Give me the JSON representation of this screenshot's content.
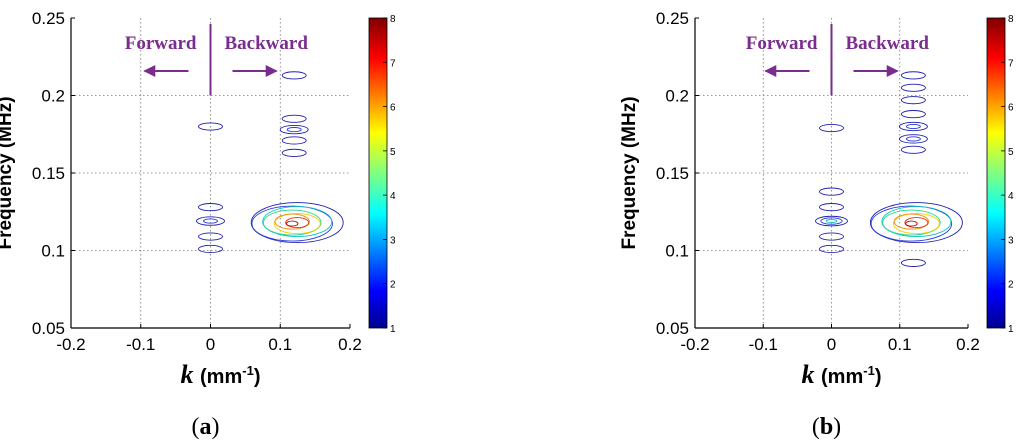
{
  "colors": {
    "annotation": "#7B2D8E",
    "contour_low": "#1f1fb0",
    "contour_mid": "#11c4c4",
    "contour_high": "#f2d200",
    "contour_peak": "#e01010",
    "grid": "#777777"
  },
  "chart_data": [
    {
      "type": "contour",
      "panel_label": "(a)",
      "panel_letter": "a",
      "xlabel_var": "k",
      "xlabel_unit": "(mm",
      "xlabel_exp": "-1",
      "xlabel_close": ")",
      "ylabel": "Frequency (MHz)",
      "xlim": [
        -0.2,
        0.2
      ],
      "ylim": [
        0.05,
        0.25
      ],
      "xticks": [
        "-0.2",
        "-0.1",
        "0",
        "0.1",
        "0.2"
      ],
      "yticks": [
        "0.05",
        "0.1",
        "0.15",
        "0.2",
        "0.25"
      ],
      "grid": true,
      "colorbar": {
        "min": 1,
        "max": 8,
        "ticks": [
          "1",
          "2",
          "3",
          "4",
          "5",
          "6",
          "7",
          "8"
        ]
      },
      "annotations": {
        "forward": "Forward",
        "backward": "Backward"
      },
      "blobs": [
        {
          "k": 0.0,
          "f": 0.18,
          "level": 1
        },
        {
          "k": 0.0,
          "f": 0.128,
          "level": 1
        },
        {
          "k": 0.0,
          "f": 0.119,
          "level": 2
        },
        {
          "k": 0.0,
          "f": 0.109,
          "level": 1
        },
        {
          "k": 0.0,
          "f": 0.101,
          "level": 1
        },
        {
          "k": 0.12,
          "f": 0.185,
          "level": 1
        },
        {
          "k": 0.12,
          "f": 0.178,
          "level": 2
        },
        {
          "k": 0.12,
          "f": 0.171,
          "level": 1
        },
        {
          "k": 0.12,
          "f": 0.163,
          "level": 1
        },
        {
          "k": 0.12,
          "f": 0.213,
          "level": 1
        },
        {
          "k": 0.12,
          "f": 0.118,
          "level": 8
        }
      ]
    },
    {
      "type": "contour",
      "panel_label": "(b)",
      "panel_letter": "b",
      "xlabel_var": "k",
      "xlabel_unit": "(mm",
      "xlabel_exp": "-1",
      "xlabel_close": ")",
      "ylabel": "Frequency (MHz)",
      "xlim": [
        -0.2,
        0.2
      ],
      "ylim": [
        0.05,
        0.25
      ],
      "xticks": [
        "-0.2",
        "-0.1",
        "0",
        "0.1",
        "0.2"
      ],
      "yticks": [
        "0.05",
        "0.1",
        "0.15",
        "0.2",
        "0.25"
      ],
      "grid": true,
      "colorbar": {
        "min": 1,
        "max": 8,
        "ticks": [
          "1",
          "2",
          "3",
          "4",
          "5",
          "6",
          "7",
          "8"
        ]
      },
      "annotations": {
        "forward": "Forward",
        "backward": "Backward"
      },
      "blobs": [
        {
          "k": 0.0,
          "f": 0.179,
          "level": 1
        },
        {
          "k": 0.0,
          "f": 0.138,
          "level": 1
        },
        {
          "k": 0.0,
          "f": 0.128,
          "level": 1
        },
        {
          "k": 0.0,
          "f": 0.119,
          "level": 3
        },
        {
          "k": 0.0,
          "f": 0.109,
          "level": 1
        },
        {
          "k": 0.0,
          "f": 0.101,
          "level": 1
        },
        {
          "k": 0.12,
          "f": 0.213,
          "level": 1
        },
        {
          "k": 0.12,
          "f": 0.205,
          "level": 1
        },
        {
          "k": 0.12,
          "f": 0.197,
          "level": 1
        },
        {
          "k": 0.12,
          "f": 0.188,
          "level": 1
        },
        {
          "k": 0.12,
          "f": 0.18,
          "level": 2
        },
        {
          "k": 0.12,
          "f": 0.172,
          "level": 2
        },
        {
          "k": 0.12,
          "f": 0.165,
          "level": 1
        },
        {
          "k": 0.12,
          "f": 0.118,
          "level": 8
        },
        {
          "k": 0.12,
          "f": 0.092,
          "level": 1
        }
      ]
    }
  ]
}
